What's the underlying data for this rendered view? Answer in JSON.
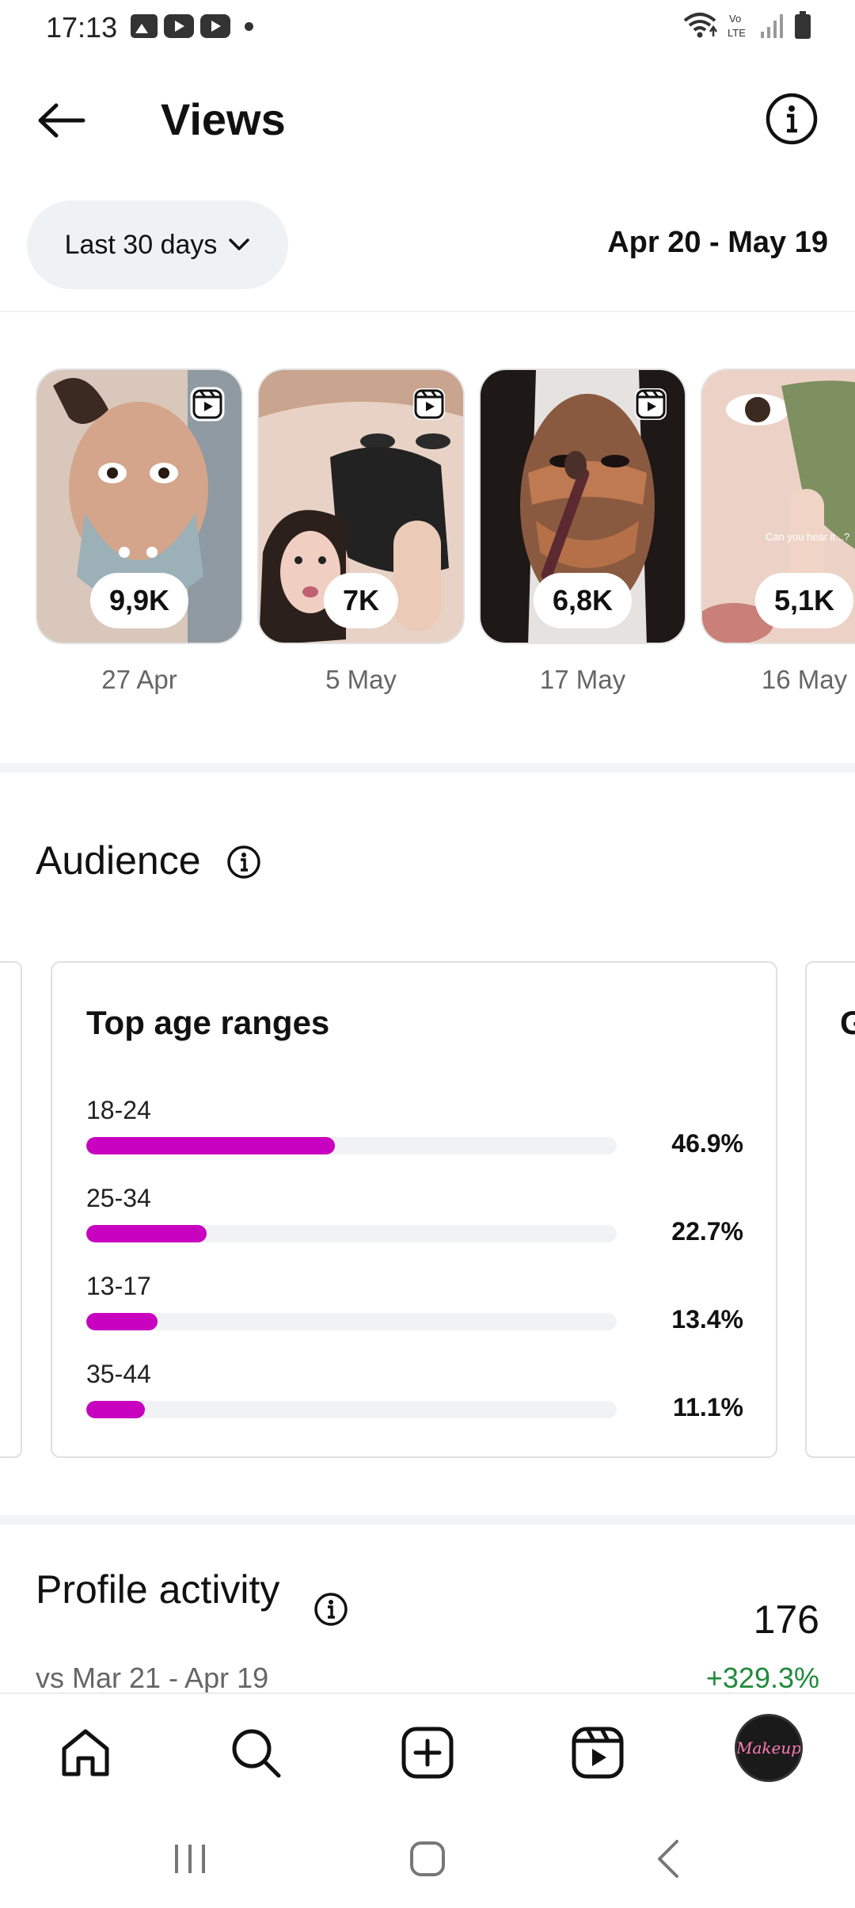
{
  "status_bar": {
    "time": "17:13",
    "icons_left": [
      "gallery-icon",
      "youtube-icon",
      "youtube-icon",
      "dot-icon"
    ],
    "icons_right": [
      "wifi-icon",
      "volte-icon",
      "signal-icon",
      "battery-icon"
    ],
    "volte_label_top": "Vo",
    "volte_label_bottom": "LTE"
  },
  "header": {
    "title": "Views",
    "back_icon": "arrow-left-icon",
    "info_icon": "info-icon"
  },
  "date_filter": {
    "selected": "Last 30 days",
    "range": "Apr 20 - May 19"
  },
  "reels": [
    {
      "views": "9,9K",
      "date": "27 Apr",
      "colors": [
        "#c9a58c",
        "#8fa7b0",
        "#e8c8b4"
      ]
    },
    {
      "views": "7K",
      "date": "5 May",
      "colors": [
        "#e2c0b0",
        "#2a2a2a",
        "#f0d8cc"
      ]
    },
    {
      "views": "6,8K",
      "date": "17 May",
      "colors": [
        "#8a5a40",
        "#c27a54",
        "#2a1c18"
      ]
    },
    {
      "views": "5,1K",
      "date": "16 May",
      "colors": [
        "#e6c2b2",
        "#7f9060",
        "#f2dad0"
      ],
      "caption": "Can you hear it...?"
    }
  ],
  "audience": {
    "title": "Audience",
    "age_card": {
      "title": "Top age ranges",
      "accent": "#c800c0",
      "rows": [
        {
          "label": "18-24",
          "value": "46.9%",
          "fraction": 0.469
        },
        {
          "label": "25-34",
          "value": "22.7%",
          "fraction": 0.227
        },
        {
          "label": "13-17",
          "value": "13.4%",
          "fraction": 0.134
        },
        {
          "label": "35-44",
          "value": "11.1%",
          "fraction": 0.111
        }
      ]
    },
    "next_card_initial": "G"
  },
  "profile_activity": {
    "title": "Profile activity",
    "count": "176",
    "compare": "vs Mar 21 - Apr 19",
    "delta": "+329.3%",
    "delta_color": "#208a3a"
  },
  "bottom_nav": {
    "items": [
      "home-icon",
      "search-icon",
      "create-icon",
      "reels-icon",
      "profile-avatar"
    ],
    "avatar_text": "Makeup"
  },
  "system_nav": [
    "recents-icon",
    "home-button-icon",
    "back-chevron-icon"
  ]
}
